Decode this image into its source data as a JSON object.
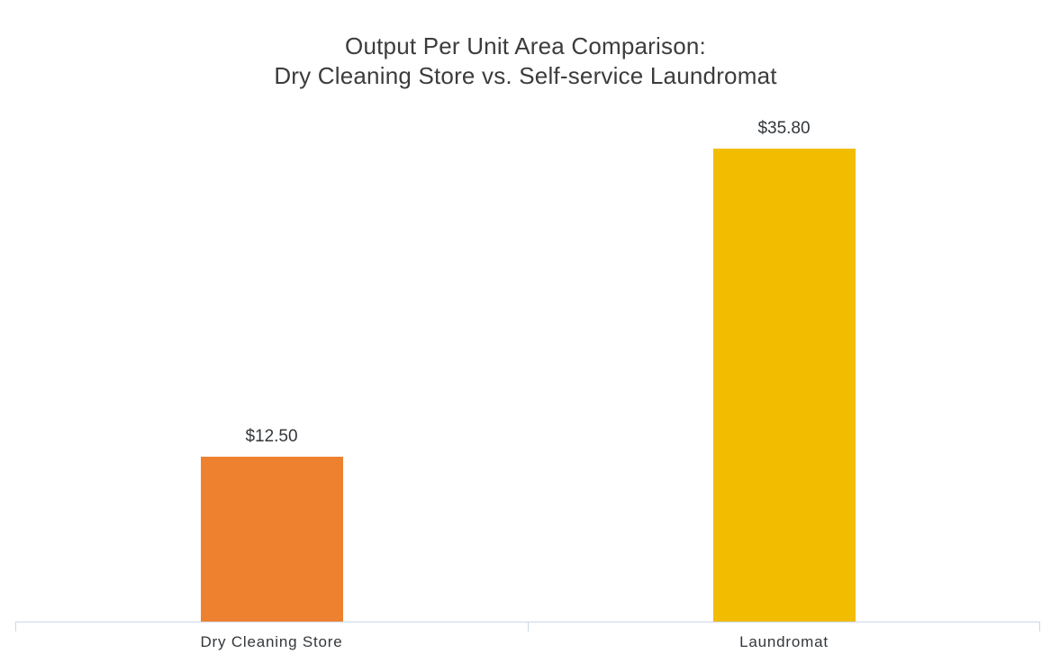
{
  "chart_data": {
    "type": "bar",
    "title": "Output Per Unit Area Comparison: Dry Cleaning Store vs. Self-service Laundromat",
    "title_line1": "Output Per Unit Area Comparison:",
    "title_line2": "Dry Cleaning Store vs. Self-service Laundromat",
    "categories": [
      "Dry Cleaning Store",
      "Laundromat"
    ],
    "values": [
      12.5,
      35.8
    ],
    "value_labels": [
      "$12.50",
      "$35.80"
    ],
    "unit": "$ per unit area",
    "xlabel": "",
    "ylabel": "",
    "ylim": [
      0,
      38
    ],
    "grid": "off",
    "legend": "none",
    "y_axis_visible": false,
    "bar_colors": [
      "#EE8130",
      "#F2BC00"
    ],
    "axis_color": "#CCD6EB",
    "title_color": "#3C3C3C",
    "label_color": "#33373B",
    "background_color": "#FFFFFF"
  }
}
